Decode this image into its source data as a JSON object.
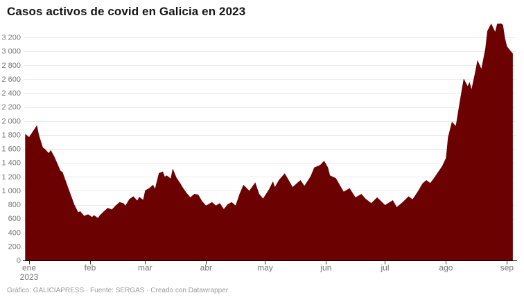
{
  "page": {
    "title": "Casos activos de covid en Galicia en 2023",
    "footer": "Gráfico: GALICIAPRESS · Fuente: SERGAS · Creado con Datawrapper"
  },
  "colors": {
    "area_fill": "#6b0101",
    "gridline": "#e9e9e9",
    "axis_line": "#000000",
    "tick_mark": "#2e2e2e",
    "axis_label": "#767676",
    "title_text": "#151515",
    "footer_text": "#9a9a9a",
    "background": "#ffffff"
  },
  "chart_data": {
    "type": "area",
    "title": "Casos activos de covid en Galicia en 2023",
    "xlabel": "",
    "ylabel": "",
    "series_name": "Casos activos de covid",
    "grid": "horizontal",
    "legend": "none",
    "ylim": [
      0,
      3400
    ],
    "y_ticks": [
      {
        "value": 0,
        "label": "0"
      },
      {
        "value": 200,
        "label": "200"
      },
      {
        "value": 400,
        "label": "400"
      },
      {
        "value": 600,
        "label": "600"
      },
      {
        "value": 800,
        "label": "800"
      },
      {
        "value": 1000,
        "label": "1 000"
      },
      {
        "value": 1200,
        "label": "1 200"
      },
      {
        "value": 1400,
        "label": "1 400"
      },
      {
        "value": 1600,
        "label": "1 600"
      },
      {
        "value": 1800,
        "label": "1 800"
      },
      {
        "value": 2000,
        "label": "2 000"
      },
      {
        "value": 2200,
        "label": "2 200"
      },
      {
        "value": 2400,
        "label": "2 400"
      },
      {
        "value": 2600,
        "label": "2 600"
      },
      {
        "value": 2800,
        "label": "2 800"
      },
      {
        "value": 3000,
        "label": "3 000"
      },
      {
        "value": 3200,
        "label": "3 200"
      }
    ],
    "x_ticks": [
      {
        "date": "2023-01-01",
        "label": "ene",
        "sublabel": "2023"
      },
      {
        "date": "2023-02-01",
        "label": "feb",
        "sublabel": ""
      },
      {
        "date": "2023-03-01",
        "label": "mar",
        "sublabel": ""
      },
      {
        "date": "2023-04-01",
        "label": "abr",
        "sublabel": ""
      },
      {
        "date": "2023-05-01",
        "label": "may",
        "sublabel": ""
      },
      {
        "date": "2023-06-01",
        "label": "jun",
        "sublabel": ""
      },
      {
        "date": "2023-07-01",
        "label": "jul",
        "sublabel": ""
      },
      {
        "date": "2023-08-01",
        "label": "ago",
        "sublabel": ""
      },
      {
        "date": "2023-09-01",
        "label": "sep",
        "sublabel": ""
      }
    ],
    "dates": [
      "2022-12-30",
      "2023-01-01",
      "2023-01-05",
      "2023-01-06",
      "2023-01-08",
      "2023-01-09",
      "2023-01-11",
      "2023-01-12",
      "2023-01-14",
      "2023-01-17",
      "2023-01-18",
      "2023-01-21",
      "2023-01-23",
      "2023-01-24",
      "2023-01-25",
      "2023-01-26",
      "2023-01-27",
      "2023-01-29",
      "2023-01-31",
      "2023-02-02",
      "2023-02-03",
      "2023-02-05",
      "2023-02-06",
      "2023-02-08",
      "2023-02-10",
      "2023-02-12",
      "2023-02-14",
      "2023-02-16",
      "2023-02-18",
      "2023-02-19",
      "2023-02-21",
      "2023-02-23",
      "2023-02-25",
      "2023-02-26",
      "2023-02-28",
      "2023-03-01",
      "2023-03-03",
      "2023-03-05",
      "2023-03-06",
      "2023-03-08",
      "2023-03-10",
      "2023-03-11",
      "2023-03-12",
      "2023-03-14",
      "2023-03-15",
      "2023-03-17",
      "2023-03-19",
      "2023-03-20",
      "2023-03-22",
      "2023-03-24",
      "2023-03-26",
      "2023-03-28",
      "2023-03-30",
      "2023-04-01",
      "2023-04-04",
      "2023-04-06",
      "2023-04-08",
      "2023-04-10",
      "2023-04-12",
      "2023-04-14",
      "2023-04-16",
      "2023-04-18",
      "2023-04-20",
      "2023-04-23",
      "2023-04-26",
      "2023-04-28",
      "2023-04-30",
      "2023-05-03",
      "2023-05-05",
      "2023-05-06",
      "2023-05-08",
      "2023-05-11",
      "2023-05-13",
      "2023-05-15",
      "2023-05-17",
      "2023-05-19",
      "2023-05-21",
      "2023-05-24",
      "2023-05-26",
      "2023-05-29",
      "2023-05-31",
      "2023-06-02",
      "2023-06-03",
      "2023-06-06",
      "2023-06-10",
      "2023-06-13",
      "2023-06-16",
      "2023-06-19",
      "2023-06-21",
      "2023-06-24",
      "2023-06-27",
      "2023-07-01",
      "2023-07-03",
      "2023-07-05",
      "2023-07-07",
      "2023-07-10",
      "2023-07-13",
      "2023-07-15",
      "2023-07-18",
      "2023-07-20",
      "2023-07-22",
      "2023-07-24",
      "2023-07-26",
      "2023-07-28",
      "2023-07-30",
      "2023-08-01",
      "2023-08-02",
      "2023-08-04",
      "2023-08-06",
      "2023-08-08",
      "2023-08-10",
      "2023-08-12",
      "2023-08-13",
      "2023-08-14",
      "2023-08-16",
      "2023-08-17",
      "2023-08-19",
      "2023-08-21",
      "2023-08-22",
      "2023-08-24",
      "2023-08-25",
      "2023-08-26",
      "2023-08-27",
      "2023-08-29",
      "2023-08-30",
      "2023-08-31",
      "2023-09-01",
      "2023-09-03",
      "2023-09-04"
    ],
    "values": [
      1815,
      1770,
      1940,
      1800,
      1620,
      1600,
      1540,
      1585,
      1480,
      1285,
      1270,
      1035,
      880,
      800,
      745,
      692,
      706,
      640,
      662,
      623,
      650,
      610,
      648,
      705,
      754,
      730,
      788,
      838,
      820,
      788,
      880,
      920,
      860,
      911,
      870,
      1005,
      1036,
      1086,
      1030,
      1252,
      1276,
      1202,
      1219,
      1176,
      1320,
      1186,
      1103,
      1053,
      971,
      905,
      954,
      945,
      850,
      788,
      838,
      788,
      822,
      738,
      805,
      838,
      788,
      954,
      1086,
      1000,
      1120,
      954,
      888,
      1020,
      1136,
      1053,
      1153,
      1250,
      1153,
      1053,
      1103,
      1153,
      1070,
      1200,
      1335,
      1368,
      1430,
      1335,
      1220,
      1180,
      987,
      1036,
      905,
      954,
      888,
      822,
      905,
      795,
      830,
      865,
      765,
      838,
      920,
      878,
      1004,
      1103,
      1153,
      1110,
      1186,
      1270,
      1352,
      1470,
      1766,
      1990,
      1930,
      2280,
      2610,
      2500,
      2560,
      2458,
      2726,
      2876,
      2750,
      3040,
      3290,
      3400,
      3340,
      3280,
      3395,
      3400,
      3380,
      3190,
      3074,
      3000,
      2970
    ]
  }
}
